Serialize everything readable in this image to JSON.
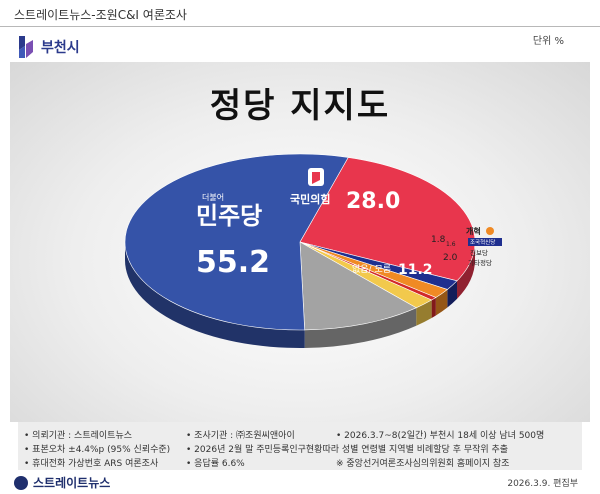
{
  "header": {
    "source_line": "스트레이트뉴스-조원C&I 여론조사",
    "region": "부천시",
    "unit": "단위 %"
  },
  "chart_data": {
    "type": "pie",
    "title": "정당 지지도",
    "slices": [
      {
        "name": "더불어민주당",
        "label": "민주당",
        "value": 55.2,
        "color": "#3553a8"
      },
      {
        "name": "국민의힘",
        "label": "국민의힘",
        "value": 28.0,
        "color": "#e8364d"
      },
      {
        "name": "조국혁신당",
        "label": "조국혁신당",
        "value": 1.8,
        "color": "#1f2f8f"
      },
      {
        "name": "개혁신당",
        "label": "개혁",
        "value": 1.8,
        "color": "#f08a24"
      },
      {
        "name": "진보당",
        "label": "진보당",
        "value": 0.6,
        "color": "#d22a2a"
      },
      {
        "name": "기타정당",
        "label": "기타정당",
        "value": 2.0,
        "color": "#f2c94c"
      },
      {
        "name": "없음/모름",
        "label": "없음/ 모름",
        "value": 11.2,
        "color": "#a3a3a3"
      }
    ],
    "value_labels": [
      "55.2",
      "28.0",
      "1.8",
      "1.6",
      "2.0",
      "11.2"
    ]
  },
  "notes": {
    "client": "의뢰기관 : 스트레이트뉴스",
    "agency": "조사기관 : ㈜조원씨앤아이",
    "period": "2026.3.7~8(2일간) 부천시 18세 이상 남녀 500명",
    "error": "표본오차 ±4.4%p (95% 신뢰수준)",
    "sampling": "2026년 2월 말 주민등록인구현황따라 성별 연령별 지역별 비례할당 후 무작위 추출",
    "method": "휴대전화 가상번호 ARS 여론조사",
    "response": "응답률 6.6%",
    "reference": "※ 중앙선거여론조사심의위원회 홈페이지 참조"
  },
  "footer": {
    "brand": "스트레이트뉴스",
    "credit": "2026.3.9.  편집부"
  }
}
